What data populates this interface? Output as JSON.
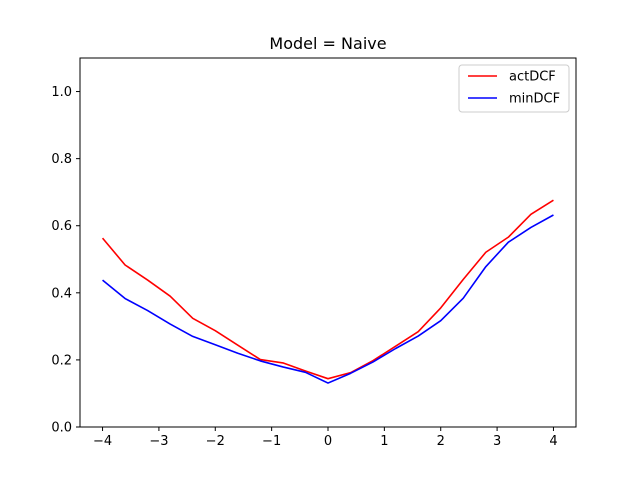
{
  "chart_data": {
    "type": "line",
    "title": "Model = Naive",
    "xlabel": "",
    "ylabel": "",
    "xlim": [
      -4.4,
      4.4
    ],
    "ylim": [
      0.0,
      1.1
    ],
    "xticks": [
      -4,
      -3,
      -2,
      -1,
      0,
      1,
      2,
      3,
      4
    ],
    "yticks": [
      0.0,
      0.2,
      0.4,
      0.6,
      0.8,
      1.0
    ],
    "xtick_labels": [
      "−4",
      "−3",
      "−2",
      "−1",
      "0",
      "1",
      "2",
      "3",
      "4"
    ],
    "ytick_labels": [
      "0.0",
      "0.2",
      "0.4",
      "0.6",
      "0.8",
      "1.0"
    ],
    "grid": false,
    "legend": "upper right",
    "x": [
      -4.0,
      -3.6,
      -3.2,
      -2.8,
      -2.4,
      -2.0,
      -1.6,
      -1.2,
      -0.8,
      -0.4,
      0.0,
      0.4,
      0.8,
      1.2,
      1.6,
      2.0,
      2.4,
      2.8,
      3.2,
      3.6,
      4.0
    ],
    "series": [
      {
        "name": "actDCF",
        "color": "#ff0000",
        "values": [
          0.563,
          0.483,
          0.438,
          0.39,
          0.324,
          0.287,
          0.244,
          0.201,
          0.191,
          0.167,
          0.144,
          0.162,
          0.198,
          0.241,
          0.284,
          0.355,
          0.44,
          0.521,
          0.566,
          0.634,
          0.676
        ]
      },
      {
        "name": "minDCF",
        "color": "#0000ff",
        "values": [
          0.438,
          0.383,
          0.347,
          0.307,
          0.27,
          0.245,
          0.22,
          0.197,
          0.179,
          0.163,
          0.131,
          0.16,
          0.194,
          0.234,
          0.271,
          0.317,
          0.384,
          0.478,
          0.551,
          0.595,
          0.632
        ]
      }
    ]
  }
}
